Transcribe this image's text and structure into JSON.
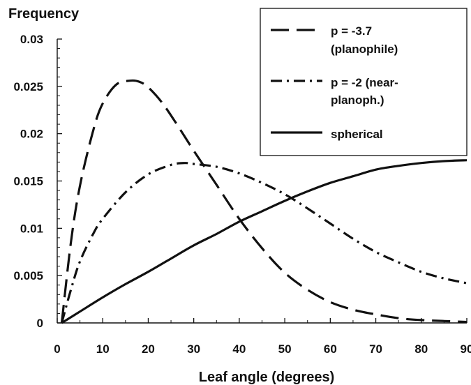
{
  "chart_data": {
    "type": "line",
    "title": "",
    "ylabel": "Frequency",
    "xlabel": "Leaf angle (degrees)",
    "xlim": [
      0,
      90
    ],
    "ylim": [
      0,
      0.03
    ],
    "xticks": [
      "0",
      "10",
      "20",
      "30",
      "40",
      "50",
      "60",
      "70",
      "80",
      "90"
    ],
    "yticks": [
      "0",
      "0.005",
      "0.01",
      "0.015",
      "0.02",
      "0.025",
      "0.03"
    ],
    "grid": false,
    "legend_position": "top-right",
    "series": [
      {
        "name": "p = -3.7 (planophile)",
        "legend_lines": [
          "p = -3.7",
          "(planophile)"
        ],
        "style": "dashed",
        "color": "#111111",
        "x": [
          1,
          3,
          5,
          8,
          10,
          13,
          16,
          18,
          20,
          23,
          26,
          30,
          35,
          40,
          45,
          50,
          55,
          60,
          65,
          70,
          75,
          80,
          85,
          90
        ],
        "y": [
          0.0,
          0.0085,
          0.0145,
          0.0205,
          0.0232,
          0.0252,
          0.0256,
          0.0255,
          0.0249,
          0.0233,
          0.0212,
          0.0182,
          0.0146,
          0.011,
          0.0079,
          0.0053,
          0.0035,
          0.0022,
          0.0014,
          0.0009,
          0.0005,
          0.0003,
          0.0002,
          0.0001
        ]
      },
      {
        "name": "p = -2 (near-planoph.)",
        "legend_lines": [
          "p = -2 (near-",
          "planoph.)"
        ],
        "style": "dash-dot",
        "color": "#111111",
        "x": [
          1,
          3,
          5,
          8,
          10,
          15,
          20,
          25,
          28,
          30,
          35,
          40,
          45,
          50,
          55,
          60,
          65,
          70,
          75,
          80,
          85,
          90
        ],
        "y": [
          0.0,
          0.0035,
          0.0065,
          0.0095,
          0.011,
          0.0138,
          0.0157,
          0.0167,
          0.0169,
          0.0168,
          0.0165,
          0.0158,
          0.0148,
          0.0136,
          0.0121,
          0.0105,
          0.0089,
          0.0075,
          0.0064,
          0.0054,
          0.0047,
          0.0042
        ]
      },
      {
        "name": "spherical",
        "legend_lines": [
          "spherical"
        ],
        "style": "solid",
        "color": "#111111",
        "x": [
          1,
          5,
          10,
          15,
          20,
          25,
          30,
          35,
          40,
          45,
          50,
          55,
          60,
          65,
          70,
          75,
          80,
          85,
          90
        ],
        "y": [
          0.0,
          0.0012,
          0.0027,
          0.0041,
          0.0054,
          0.0068,
          0.0082,
          0.0094,
          0.0107,
          0.0118,
          0.0129,
          0.0139,
          0.0148,
          0.0155,
          0.0162,
          0.0166,
          0.0169,
          0.0171,
          0.0172
        ]
      }
    ]
  }
}
